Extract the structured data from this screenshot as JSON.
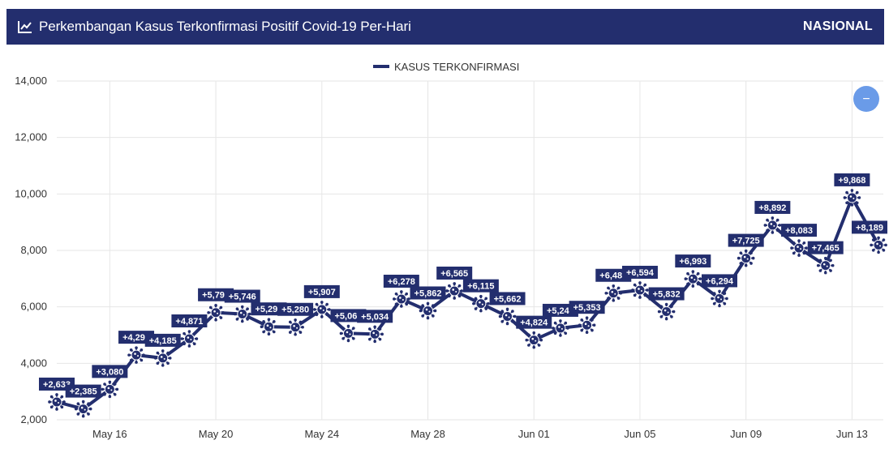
{
  "header": {
    "title": "Perkembangan Kasus Terkonfirmasi Positif Covid-19 Per-Hari",
    "region": "NASIONAL",
    "icon": "line-chart-icon"
  },
  "zoom_button": {
    "label": "−",
    "icon": "zoom-out-icon"
  },
  "colors": {
    "accent": "#232e6e",
    "grid": "#e6e6e6",
    "button": "#6a9be8"
  },
  "chart_data": {
    "type": "line",
    "legend": "KASUS TERKONFIRMASI",
    "legend_position": "top-center",
    "grid": true,
    "ylim": [
      2000,
      14000
    ],
    "yticks": [
      "2,000",
      "4,000",
      "6,000",
      "8,000",
      "10,000",
      "12,000",
      "14,000"
    ],
    "xticks": [
      "May 16",
      "May 20",
      "May 24",
      "May 28",
      "Jun 01",
      "Jun 05",
      "Jun 09",
      "Jun 13"
    ],
    "x": [
      "May 14",
      "May 15",
      "May 16",
      "May 17",
      "May 18",
      "May 19",
      "May 20",
      "May 21",
      "May 22",
      "May 23",
      "May 24",
      "May 25",
      "May 26",
      "May 27",
      "May 28",
      "May 29",
      "May 30",
      "May 31",
      "Jun 01",
      "Jun 02",
      "Jun 03",
      "Jun 04",
      "Jun 05",
      "Jun 06",
      "Jun 07",
      "Jun 08",
      "Jun 09",
      "Jun 10",
      "Jun 11",
      "Jun 12",
      "Jun 13",
      "Jun 14"
    ],
    "series": [
      {
        "name": "KASUS TERKONFIRMASI",
        "values": [
          2633,
          2385,
          3080,
          4293,
          4185,
          4871,
          5797,
          5746,
          5296,
          5280,
          5907,
          5060,
          5034,
          6278,
          5862,
          6565,
          6115,
          5662,
          4824,
          5246,
          5353,
          6486,
          6594,
          5832,
          6993,
          6294,
          7725,
          8892,
          8083,
          7465,
          9868,
          8189
        ]
      }
    ],
    "data_labels": [
      "+2,633",
      "+2,385",
      "+3,080",
      "+4,293",
      "+4,185",
      "+4,871",
      "+5,797",
      "+5,746",
      "+5,296",
      "+5,280",
      "+5,907",
      "+5,060",
      "+5,034",
      "+6,278",
      "+5,862",
      "+6,565",
      "+6,115",
      "+5,662",
      "+4,824",
      "+5,246",
      "+5,353",
      "+6,486",
      "+6,594",
      "+5,832",
      "+6,993",
      "+6,294",
      "+7,725",
      "+8,892",
      "+8,083",
      "+7,465",
      "+9,868",
      "+8,189"
    ]
  }
}
